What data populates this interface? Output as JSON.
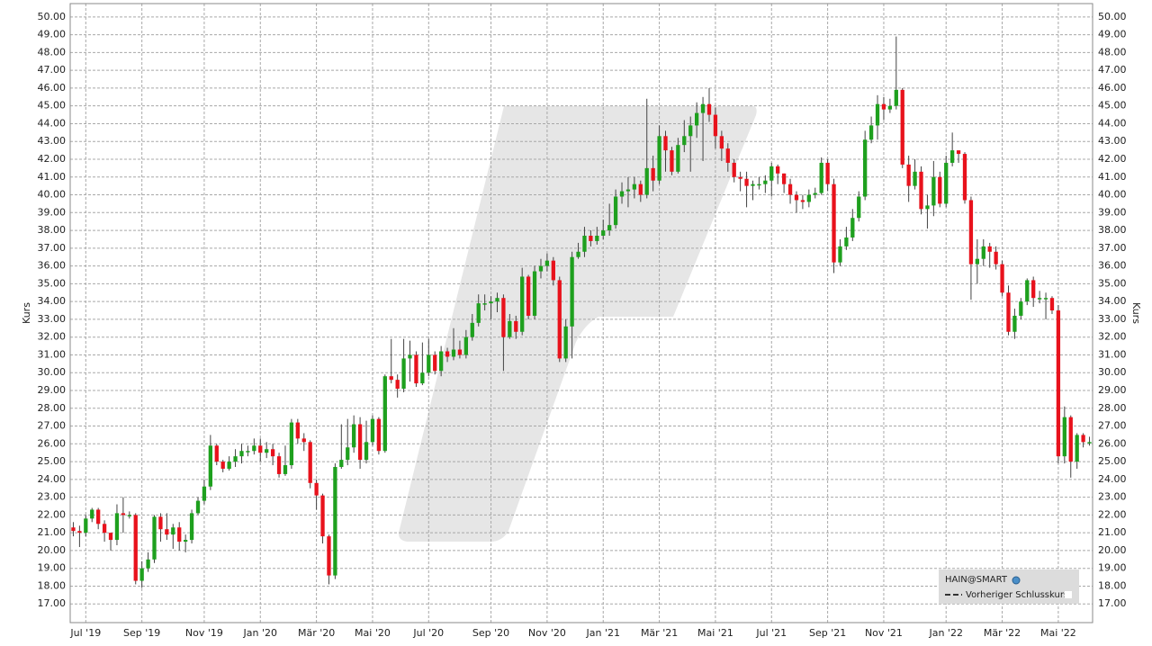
{
  "chart_data": {
    "type": "candlestick",
    "series_name": "HAIN@SMART",
    "legend_prev_close": "Vorheriger Schlusskurs",
    "ylabel": "Kurs",
    "up_color": "#1ea01e",
    "down_color": "#e8121c",
    "grid": true,
    "ylim": [
      15.95,
      50.75
    ],
    "yticks": [
      {
        "value": 17,
        "label": "17.00"
      },
      {
        "value": 18,
        "label": "18.00"
      },
      {
        "value": 19,
        "label": "19.00"
      },
      {
        "value": 20,
        "label": "20.00"
      },
      {
        "value": 21,
        "label": "21.00"
      },
      {
        "value": 22,
        "label": "22.00"
      },
      {
        "value": 23,
        "label": "23.00"
      },
      {
        "value": 24,
        "label": "24.00"
      },
      {
        "value": 25,
        "label": "25.00"
      },
      {
        "value": 26,
        "label": "26.00"
      },
      {
        "value": 27,
        "label": "27.00"
      },
      {
        "value": 28,
        "label": "28.00"
      },
      {
        "value": 29,
        "label": "29.00"
      },
      {
        "value": 30,
        "label": "30.00"
      },
      {
        "value": 31,
        "label": "31.00"
      },
      {
        "value": 32,
        "label": "32.00"
      },
      {
        "value": 33,
        "label": "33.00"
      },
      {
        "value": 34,
        "label": "34.00"
      },
      {
        "value": 35,
        "label": "35.00"
      },
      {
        "value": 36,
        "label": "36.00"
      },
      {
        "value": 37,
        "label": "37.00"
      },
      {
        "value": 38,
        "label": "38.00"
      },
      {
        "value": 39,
        "label": "39.00"
      },
      {
        "value": 40,
        "label": "40.00"
      },
      {
        "value": 41,
        "label": "41.00"
      },
      {
        "value": 42,
        "label": "42.00"
      },
      {
        "value": 43,
        "label": "43.00"
      },
      {
        "value": 44,
        "label": "44.00"
      },
      {
        "value": 45,
        "label": "45.00"
      },
      {
        "value": 46,
        "label": "46.00"
      },
      {
        "value": 47,
        "label": "47.00"
      },
      {
        "value": 48,
        "label": "48.00"
      },
      {
        "value": 49,
        "label": "49.00"
      },
      {
        "value": 50,
        "label": "50.00"
      }
    ],
    "categories": [
      null,
      null,
      "Jul '19",
      null,
      null,
      null,
      null,
      null,
      null,
      null,
      null,
      "Sep '19",
      null,
      null,
      null,
      null,
      null,
      null,
      null,
      null,
      null,
      "Nov '19",
      null,
      null,
      null,
      null,
      null,
      null,
      null,
      null,
      "Jan '20",
      null,
      null,
      null,
      null,
      null,
      null,
      null,
      null,
      "Mär '20",
      null,
      null,
      null,
      null,
      null,
      null,
      null,
      null,
      "Mai '20",
      null,
      null,
      null,
      null,
      null,
      null,
      null,
      null,
      "Jul '20",
      null,
      null,
      null,
      null,
      null,
      null,
      null,
      null,
      null,
      "Sep '20",
      null,
      null,
      null,
      null,
      null,
      null,
      null,
      null,
      "Nov '20",
      null,
      null,
      null,
      null,
      null,
      null,
      null,
      null,
      "Jan '21",
      null,
      null,
      null,
      null,
      null,
      null,
      null,
      null,
      "Mär '21",
      null,
      null,
      null,
      null,
      null,
      null,
      null,
      null,
      "Mai '21",
      null,
      null,
      null,
      null,
      null,
      null,
      null,
      null,
      "Jul '21",
      null,
      null,
      null,
      null,
      null,
      null,
      null,
      null,
      "Sep '21",
      null,
      null,
      null,
      null,
      null,
      null,
      null,
      null,
      "Nov '21",
      null,
      null,
      null,
      null,
      null,
      null,
      null,
      null,
      null,
      "Jan '22",
      null,
      null,
      null,
      null,
      null,
      null,
      null,
      null,
      "Mär '22",
      null,
      null,
      null,
      null,
      null,
      null,
      null,
      null,
      "Mai '22",
      null,
      null,
      null,
      null,
      null
    ],
    "open": [
      21.3,
      21.1,
      21.0,
      21.8,
      22.3,
      21.5,
      21.0,
      20.6,
      22.1,
      22.0,
      22.0,
      18.3,
      19.0,
      19.5,
      21.9,
      21.2,
      20.9,
      21.3,
      20.5,
      20.6,
      22.1,
      22.8,
      23.6,
      25.9,
      25.0,
      24.6,
      25.0,
      25.3,
      25.6,
      25.6,
      25.9,
      25.5,
      25.7,
      25.3,
      24.3,
      24.8,
      27.2,
      26.3,
      26.1,
      23.8,
      23.1,
      20.8,
      18.6,
      24.7,
      25.1,
      25.8,
      27.1,
      25.1,
      26.1,
      27.4,
      25.6,
      29.8,
      29.6,
      29.1,
      30.8,
      31.0,
      29.4,
      30.0,
      31.0,
      30.1,
      31.2,
      30.9,
      31.3,
      31.0,
      32.0,
      32.8,
      33.9,
      33.9,
      34.0,
      34.2,
      32.0,
      32.9,
      32.3,
      35.4,
      33.2,
      35.7,
      36.0,
      36.3,
      35.2,
      30.8,
      32.6,
      36.5,
      36.8,
      37.7,
      37.4,
      37.7,
      38.0,
      38.3,
      39.9,
      40.2,
      40.3,
      40.6,
      40.0,
      41.5,
      40.8,
      43.3,
      42.5,
      41.3,
      42.8,
      43.3,
      43.9,
      44.6,
      45.1,
      44.5,
      43.3,
      42.6,
      41.8,
      41.0,
      40.9,
      40.5,
      40.6,
      40.6,
      40.8,
      41.6,
      41.2,
      40.6,
      40.0,
      39.7,
      39.6,
      40.0,
      40.1,
      41.8,
      40.6,
      36.2,
      37.1,
      37.6,
      38.7,
      39.9,
      43.1,
      43.9,
      45.1,
      44.8,
      45.0,
      45.9,
      41.7,
      40.5,
      41.3,
      39.2,
      39.4,
      41.0,
      39.5,
      41.8,
      42.5,
      42.3,
      39.7,
      36.1,
      36.4,
      37.1,
      36.8,
      36.1,
      34.5,
      32.3,
      33.2,
      34.0,
      35.2,
      34.2,
      34.2,
      34.2,
      33.5,
      25.3,
      27.5,
      25.0,
      26.5,
      26.1
    ],
    "high": [
      21.6,
      21.4,
      22.0,
      22.4,
      22.4,
      21.7,
      21.0,
      22.6,
      23.0,
      22.2,
      22.1,
      19.4,
      19.9,
      22.0,
      22.1,
      22.1,
      21.5,
      21.6,
      20.9,
      22.3,
      23.0,
      24.0,
      26.5,
      26.0,
      25.1,
      25.3,
      25.7,
      26.0,
      25.9,
      26.3,
      26.3,
      26.1,
      26.0,
      25.5,
      25.9,
      27.4,
      27.4,
      26.6,
      26.2,
      24.0,
      23.2,
      20.9,
      24.9,
      27.1,
      27.4,
      27.6,
      27.5,
      27.3,
      27.6,
      27.5,
      29.9,
      31.9,
      29.9,
      31.9,
      31.8,
      31.2,
      31.7,
      31.9,
      31.2,
      31.5,
      31.4,
      32.5,
      31.8,
      32.4,
      33.3,
      34.4,
      34.4,
      34.3,
      34.5,
      34.4,
      33.3,
      33.2,
      35.9,
      35.5,
      36.0,
      36.4,
      36.7,
      36.5,
      35.4,
      33.0,
      36.8,
      37.3,
      38.2,
      38.0,
      38.2,
      38.6,
      39.5,
      40.3,
      40.7,
      41.0,
      41.0,
      40.8,
      45.4,
      42.2,
      43.9,
      43.6,
      42.7,
      43.2,
      44.2,
      44.4,
      45.2,
      45.5,
      46.0,
      44.9,
      43.6,
      42.9,
      42.0,
      41.3,
      41.3,
      40.8,
      41.0,
      41.1,
      41.8,
      41.7,
      41.2,
      40.9,
      40.2,
      40.0,
      40.3,
      40.4,
      42.1,
      42.0,
      40.9,
      37.5,
      38.2,
      39.2,
      40.2,
      43.6,
      44.4,
      45.6,
      45.5,
      45.4,
      48.9,
      46.0,
      42.2,
      42.0,
      41.6,
      40.0,
      41.9,
      41.3,
      42.2,
      43.5,
      42.5,
      42.4,
      39.9,
      37.5,
      37.5,
      37.3,
      37.1,
      36.3,
      34.9,
      33.6,
      34.2,
      35.3,
      35.4,
      34.6,
      34.5,
      34.3,
      33.8,
      28.1,
      27.6,
      26.6,
      26.6,
      26.4
    ],
    "low": [
      20.8,
      20.2,
      20.8,
      21.6,
      21.2,
      20.5,
      20.0,
      20.3,
      21.0,
      21.8,
      18.1,
      17.9,
      18.8,
      19.3,
      20.5,
      20.6,
      20.1,
      20.0,
      19.9,
      20.4,
      22.0,
      22.6,
      23.4,
      24.8,
      24.4,
      24.5,
      24.7,
      24.9,
      25.3,
      25.4,
      25.0,
      25.2,
      24.8,
      24.1,
      24.2,
      24.6,
      26.0,
      25.6,
      23.5,
      22.3,
      20.4,
      18.1,
      18.4,
      24.6,
      24.8,
      25.5,
      24.6,
      24.9,
      25.9,
      25.4,
      25.5,
      29.4,
      28.6,
      28.9,
      29.5,
      29.2,
      29.3,
      29.8,
      29.9,
      29.8,
      30.6,
      30.7,
      30.8,
      30.8,
      31.8,
      32.6,
      33.5,
      33.0,
      33.4,
      30.1,
      31.9,
      31.9,
      32.1,
      33.0,
      33.0,
      35.3,
      35.7,
      34.9,
      30.6,
      30.6,
      30.8,
      36.4,
      36.5,
      37.1,
      37.2,
      37.5,
      37.7,
      38.1,
      39.5,
      39.3,
      39.8,
      39.6,
      39.8,
      40.2,
      40.6,
      41.3,
      41.1,
      41.2,
      42.4,
      41.3,
      43.2,
      41.9,
      44.1,
      42.6,
      41.9,
      41.3,
      40.7,
      40.2,
      39.3,
      39.7,
      40.3,
      40.1,
      39.9,
      40.6,
      40.1,
      39.5,
      39.0,
      39.2,
      39.3,
      39.8,
      40.0,
      40.2,
      35.6,
      36.0,
      36.9,
      37.4,
      38.5,
      39.7,
      42.9,
      43.1,
      44.2,
      44.6,
      44.8,
      41.5,
      39.6,
      40.3,
      38.9,
      38.1,
      38.8,
      39.3,
      39.3,
      41.6,
      41.8,
      39.5,
      34.1,
      35.0,
      36.0,
      35.9,
      35.8,
      34.3,
      32.1,
      31.9,
      33.0,
      33.8,
      33.7,
      33.9,
      33.0,
      33.3,
      24.9,
      24.9,
      24.1,
      24.6,
      25.8,
      25.9
    ],
    "close": [
      21.1,
      21.0,
      21.8,
      22.3,
      21.5,
      21.0,
      20.6,
      22.1,
      22.0,
      22.0,
      18.3,
      19.0,
      19.5,
      21.9,
      21.2,
      20.9,
      21.3,
      20.5,
      20.6,
      22.1,
      22.8,
      23.6,
      25.9,
      25.0,
      24.6,
      25.0,
      25.3,
      25.6,
      25.6,
      25.9,
      25.5,
      25.7,
      25.3,
      24.3,
      24.8,
      27.2,
      26.3,
      26.1,
      23.8,
      23.1,
      20.8,
      18.6,
      24.7,
      25.1,
      25.8,
      27.1,
      25.1,
      26.1,
      27.4,
      25.6,
      29.8,
      29.6,
      29.1,
      30.8,
      31.0,
      29.4,
      30.0,
      31.0,
      30.1,
      31.2,
      30.9,
      31.3,
      31.0,
      32.0,
      32.8,
      33.9,
      33.9,
      34.0,
      34.2,
      32.0,
      32.9,
      32.3,
      35.4,
      33.2,
      35.7,
      36.0,
      36.3,
      35.2,
      30.8,
      32.6,
      36.5,
      36.8,
      37.7,
      37.4,
      37.7,
      38.0,
      38.3,
      39.9,
      40.2,
      40.3,
      40.6,
      40.0,
      41.5,
      40.8,
      43.3,
      42.5,
      41.3,
      42.8,
      43.3,
      43.9,
      44.6,
      45.1,
      44.5,
      43.3,
      42.6,
      41.8,
      41.0,
      40.9,
      40.5,
      40.6,
      40.6,
      40.8,
      41.6,
      41.2,
      40.6,
      40.0,
      39.7,
      39.6,
      40.0,
      40.1,
      41.8,
      40.6,
      36.2,
      37.1,
      37.6,
      38.7,
      39.9,
      43.1,
      43.9,
      45.1,
      44.8,
      45.0,
      45.9,
      41.7,
      40.5,
      41.3,
      39.2,
      39.4,
      41.0,
      39.5,
      41.8,
      42.5,
      42.3,
      39.7,
      36.1,
      36.4,
      37.1,
      36.8,
      36.1,
      34.5,
      32.3,
      33.2,
      34.0,
      35.2,
      34.2,
      34.2,
      34.2,
      33.5,
      25.3,
      27.5,
      25.0,
      26.5,
      26.1,
      26.1
    ]
  }
}
